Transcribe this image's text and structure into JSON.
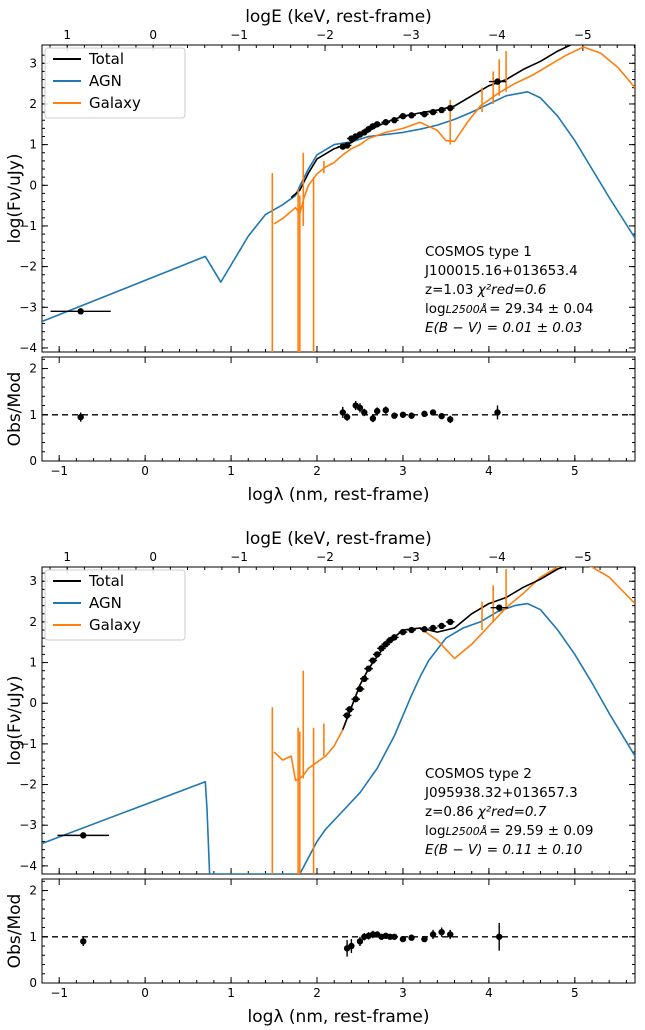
{
  "chart_data": [
    {
      "type": "line",
      "top_axis": {
        "label": "logE (keV, rest-frame)",
        "ticks": [
          1,
          0,
          -1,
          -2,
          -3,
          -4,
          -5
        ],
        "tick_labels": [
          "1",
          "0",
          "−1",
          "−2",
          "−3",
          "−4",
          "−5"
        ]
      },
      "xlabel": "logλ (nm, rest-frame)",
      "ylabel": "log(Fν/uJy)",
      "xlim": [
        -1.2,
        5.7
      ],
      "ylim": [
        -4.1,
        3.45
      ],
      "yticks": [
        -4,
        -3,
        -2,
        -1,
        0,
        1,
        2,
        3
      ],
      "xticks": [
        -1,
        0,
        1,
        2,
        3,
        4,
        5
      ],
      "legend": {
        "placement": "top-left",
        "entries": [
          "Total",
          "AGN",
          "Galaxy"
        ]
      },
      "colors": {
        "Total": "#000000",
        "AGN": "#1f77b4",
        "Galaxy": "#ff7f0e"
      },
      "annotation": {
        "line1": "COSMOS type 1",
        "line2": "J100015.16+013653.4",
        "line3_a": "z=1.03 ",
        "line3_b": "χ²red=0.6",
        "line4_a": "log",
        "line4_b": "L2500Å",
        "line4_c": "= 29.34 ± 0.04",
        "line5": "E(B − V) = 0.01 ± 0.03"
      },
      "series": [
        {
          "name": "AGN",
          "x": [
            -1.2,
            0.7,
            0.88,
            1.2,
            1.4,
            1.6,
            1.75,
            1.8,
            1.9,
            2.0,
            2.2,
            2.4,
            2.6,
            2.8,
            3.0,
            3.2,
            3.4,
            3.6,
            3.8,
            4.0,
            4.2,
            4.45,
            4.6,
            4.8,
            5.0,
            5.2,
            5.4,
            5.7
          ],
          "y": [
            -3.35,
            -1.75,
            -2.38,
            -1.25,
            -0.72,
            -0.48,
            -0.25,
            -0.02,
            0.4,
            0.75,
            1.0,
            1.07,
            1.2,
            1.25,
            1.3,
            1.38,
            1.48,
            1.62,
            1.8,
            2.0,
            2.2,
            2.3,
            2.15,
            1.7,
            1.1,
            0.4,
            -0.3,
            -1.3
          ]
        },
        {
          "name": "Galaxy",
          "x": [
            1.5,
            1.6,
            1.75,
            1.8,
            1.85,
            1.9,
            2.0,
            2.1,
            2.2,
            2.3,
            2.4,
            2.5,
            2.6,
            2.8,
            3.0,
            3.2,
            3.4,
            3.5,
            3.6,
            3.75,
            3.9,
            4.1,
            4.3,
            4.5,
            4.7,
            4.9,
            5.1,
            5.3,
            5.5,
            5.7
          ],
          "y": [
            -0.95,
            -0.82,
            -0.55,
            -0.7,
            -0.3,
            0.0,
            0.28,
            0.45,
            0.56,
            0.75,
            0.9,
            1.0,
            1.15,
            1.3,
            1.4,
            1.55,
            1.35,
            1.1,
            1.08,
            1.55,
            1.95,
            2.25,
            2.5,
            2.7,
            2.95,
            3.2,
            3.4,
            3.25,
            2.9,
            2.4
          ]
        },
        {
          "name": "Total",
          "x": [
            1.7,
            1.8,
            1.9,
            2.0,
            2.2,
            2.4,
            2.6,
            2.8,
            3.0,
            3.2,
            3.4,
            3.6,
            3.8,
            4.0,
            4.2,
            4.4,
            4.6,
            4.8,
            5.0
          ],
          "y": [
            -0.3,
            -0.12,
            0.3,
            0.65,
            0.9,
            1.05,
            1.35,
            1.55,
            1.7,
            1.78,
            1.85,
            1.95,
            2.2,
            2.45,
            2.6,
            2.85,
            3.05,
            3.3,
            3.5
          ]
        }
      ],
      "galaxy_emission_lines": [
        {
          "x": 1.48,
          "top": 0.3,
          "bottom": -4.1
        },
        {
          "x": 1.78,
          "top": -0.1,
          "bottom": -4.1
        },
        {
          "x": 1.8,
          "top": -0.25,
          "bottom": -4.1
        },
        {
          "x": 1.84,
          "top": 0.8,
          "bottom": -1.0
        },
        {
          "x": 1.96,
          "top": 0.2,
          "bottom": -4.1
        },
        {
          "x": 2.08,
          "top": 0.6,
          "bottom": 0.3
        },
        {
          "x": 3.55,
          "top": 2.1,
          "bottom": 1.0
        },
        {
          "x": 3.92,
          "top": 2.4,
          "bottom": 1.8
        },
        {
          "x": 4.05,
          "top": 2.8,
          "bottom": 2.0
        },
        {
          "x": 4.12,
          "top": 3.1,
          "bottom": 2.2
        },
        {
          "x": 4.2,
          "top": 3.3,
          "bottom": 2.3
        }
      ],
      "photometry": {
        "x": [
          -0.75,
          2.3,
          2.35,
          2.4,
          2.45,
          2.5,
          2.55,
          2.6,
          2.65,
          2.7,
          2.8,
          2.9,
          3.0,
          3.1,
          3.25,
          3.35,
          3.45,
          3.55,
          4.1
        ],
        "y": [
          -3.1,
          0.95,
          0.98,
          1.15,
          1.2,
          1.25,
          1.3,
          1.38,
          1.45,
          1.5,
          1.55,
          1.6,
          1.7,
          1.72,
          1.75,
          1.8,
          1.85,
          1.9,
          2.55
        ],
        "xerr": [
          0.35,
          0.06,
          0.05,
          0.05,
          0.05,
          0.05,
          0.05,
          0.05,
          0.05,
          0.05,
          0.05,
          0.05,
          0.05,
          0.05,
          0.05,
          0.05,
          0.05,
          0.05,
          0.1
        ]
      },
      "residuals": {
        "ylabel": "Obs/Mod",
        "ylim": [
          0,
          2.25
        ],
        "yticks": [
          0,
          1,
          2
        ],
        "reference_line": 1,
        "x": [
          -0.75,
          2.3,
          2.35,
          2.45,
          2.5,
          2.55,
          2.65,
          2.7,
          2.8,
          2.9,
          3.0,
          3.1,
          3.25,
          3.35,
          3.45,
          3.55,
          4.1
        ],
        "y": [
          0.95,
          1.05,
          0.95,
          1.2,
          1.15,
          1.05,
          0.92,
          1.08,
          1.1,
          0.98,
          1.0,
          0.98,
          1.02,
          1.05,
          0.97,
          0.9,
          1.05
        ],
        "yerr": [
          0.1,
          0.12,
          0.08,
          0.1,
          0.1,
          0.08,
          0.08,
          0.08,
          0.08,
          0.06,
          0.06,
          0.06,
          0.06,
          0.06,
          0.06,
          0.08,
          0.15
        ]
      }
    },
    {
      "type": "line",
      "top_axis": {
        "label": "logE (keV, rest-frame)",
        "ticks": [
          1,
          0,
          -1,
          -2,
          -3,
          -4,
          -5
        ],
        "tick_labels": [
          "1",
          "0",
          "−1",
          "−2",
          "−3",
          "−4",
          "−5"
        ]
      },
      "xlabel": "logλ (nm, rest-frame)",
      "ylabel": "log(Fν/uJy)",
      "xlim": [
        -1.2,
        5.7
      ],
      "ylim": [
        -4.2,
        3.35
      ],
      "yticks": [
        -4,
        -3,
        -2,
        -1,
        0,
        1,
        2,
        3
      ],
      "xticks": [
        -1,
        0,
        1,
        2,
        3,
        4,
        5
      ],
      "legend": {
        "placement": "top-left",
        "entries": [
          "Total",
          "AGN",
          "Galaxy"
        ]
      },
      "colors": {
        "Total": "#000000",
        "AGN": "#1f77b4",
        "Galaxy": "#ff7f0e"
      },
      "annotation": {
        "line1": "COSMOS type 2",
        "line2": "J095938.32+013657.3",
        "line3_a": "z=0.86 ",
        "line3_b": "χ²red=0.7",
        "line4_a": "log",
        "line4_b": "L2500Å",
        "line4_c": "= 29.59 ± 0.09",
        "line5": "E(B − V) = 0.11 ± 0.10"
      },
      "series": [
        {
          "name": "AGN",
          "x": [
            -1.2,
            0.7,
            0.72,
            0.75,
            0.9,
            1.8,
            1.9,
            2.0,
            2.1,
            2.3,
            2.5,
            2.7,
            2.9,
            3.0,
            3.1,
            3.2,
            3.3,
            3.5,
            3.7,
            3.9,
            4.1,
            4.3,
            4.45,
            4.6,
            4.8,
            5.0,
            5.2,
            5.4,
            5.7
          ],
          "y": [
            -3.45,
            -1.93,
            -2.6,
            -4.2,
            -4.2,
            -4.2,
            -3.8,
            -3.4,
            -3.1,
            -2.65,
            -2.2,
            -1.6,
            -0.8,
            -0.3,
            0.2,
            0.65,
            1.05,
            1.6,
            1.85,
            2.0,
            2.25,
            2.4,
            2.45,
            2.3,
            1.8,
            1.2,
            0.5,
            -0.25,
            -1.3
          ]
        },
        {
          "name": "Galaxy",
          "x": [
            1.5,
            1.6,
            1.7,
            1.75,
            1.8,
            1.85,
            1.9,
            2.0,
            2.1,
            2.2,
            2.3,
            2.4,
            2.5,
            2.6,
            2.8,
            3.0,
            3.2,
            3.4,
            3.6,
            3.8,
            4.0,
            4.2,
            4.4,
            4.6,
            4.8,
            5.0,
            5.2,
            5.4,
            5.7
          ],
          "y": [
            -1.2,
            -1.4,
            -1.3,
            -1.9,
            -1.85,
            -1.75,
            -1.6,
            -1.45,
            -1.3,
            -1.05,
            -0.65,
            -0.1,
            0.45,
            0.85,
            1.45,
            1.8,
            1.85,
            1.55,
            1.1,
            1.45,
            1.9,
            2.35,
            2.7,
            3.1,
            3.35,
            3.45,
            3.35,
            3.1,
            2.45
          ]
        },
        {
          "name": "Total",
          "x": [
            2.3,
            2.4,
            2.5,
            2.6,
            2.8,
            3.0,
            3.2,
            3.4,
            3.6,
            3.8,
            4.0,
            4.2,
            4.4,
            4.6,
            4.8,
            5.0
          ],
          "y": [
            -0.65,
            -0.1,
            0.45,
            0.85,
            1.45,
            1.8,
            1.85,
            1.75,
            1.85,
            2.2,
            2.45,
            2.6,
            2.85,
            3.05,
            3.3,
            3.45
          ]
        }
      ],
      "galaxy_emission_lines": [
        {
          "x": 1.48,
          "top": -0.1,
          "bottom": -4.2
        },
        {
          "x": 1.78,
          "top": -0.6,
          "bottom": -4.2
        },
        {
          "x": 1.8,
          "top": -0.7,
          "bottom": -4.2
        },
        {
          "x": 1.84,
          "top": 0.8,
          "bottom": -1.85
        },
        {
          "x": 1.96,
          "top": -0.6,
          "bottom": -4.2
        },
        {
          "x": 2.08,
          "top": -0.5,
          "bottom": -1.3
        },
        {
          "x": 3.92,
          "top": 2.5,
          "bottom": 1.8
        },
        {
          "x": 4.05,
          "top": 2.9,
          "bottom": 2.0
        },
        {
          "x": 4.2,
          "top": 3.3,
          "bottom": 2.3
        }
      ],
      "photometry": {
        "x": [
          -0.72,
          2.35,
          2.38,
          2.45,
          2.5,
          2.55,
          2.6,
          2.65,
          2.7,
          2.75,
          2.8,
          2.85,
          2.9,
          3.0,
          3.1,
          3.25,
          3.35,
          3.45,
          3.55,
          4.12
        ],
        "y": [
          -3.25,
          -0.3,
          -0.15,
          0.1,
          0.35,
          0.6,
          0.85,
          1.05,
          1.2,
          1.35,
          1.45,
          1.55,
          1.62,
          1.75,
          1.8,
          1.82,
          1.85,
          1.9,
          2.0,
          2.35
        ],
        "xerr": [
          0.3,
          0.05,
          0.05,
          0.05,
          0.05,
          0.05,
          0.05,
          0.05,
          0.05,
          0.05,
          0.05,
          0.05,
          0.05,
          0.05,
          0.05,
          0.05,
          0.05,
          0.05,
          0.05,
          0.1
        ]
      },
      "residuals": {
        "ylabel": "Obs/Mod",
        "ylim": [
          0,
          2.25
        ],
        "yticks": [
          0,
          1,
          2
        ],
        "reference_line": 1,
        "x": [
          -0.72,
          2.35,
          2.4,
          2.5,
          2.55,
          2.6,
          2.65,
          2.7,
          2.75,
          2.8,
          2.85,
          2.9,
          3.0,
          3.1,
          3.25,
          3.35,
          3.45,
          3.55,
          4.12
        ],
        "y": [
          0.9,
          0.75,
          0.8,
          0.9,
          1.0,
          1.02,
          1.05,
          1.05,
          1.0,
          1.02,
          1.0,
          1.0,
          0.95,
          0.98,
          0.95,
          1.05,
          1.1,
          1.05,
          1.0
        ],
        "yerr": [
          0.1,
          0.18,
          0.15,
          0.1,
          0.08,
          0.08,
          0.08,
          0.06,
          0.06,
          0.06,
          0.06,
          0.06,
          0.06,
          0.06,
          0.06,
          0.1,
          0.1,
          0.1,
          0.3
        ]
      }
    }
  ]
}
